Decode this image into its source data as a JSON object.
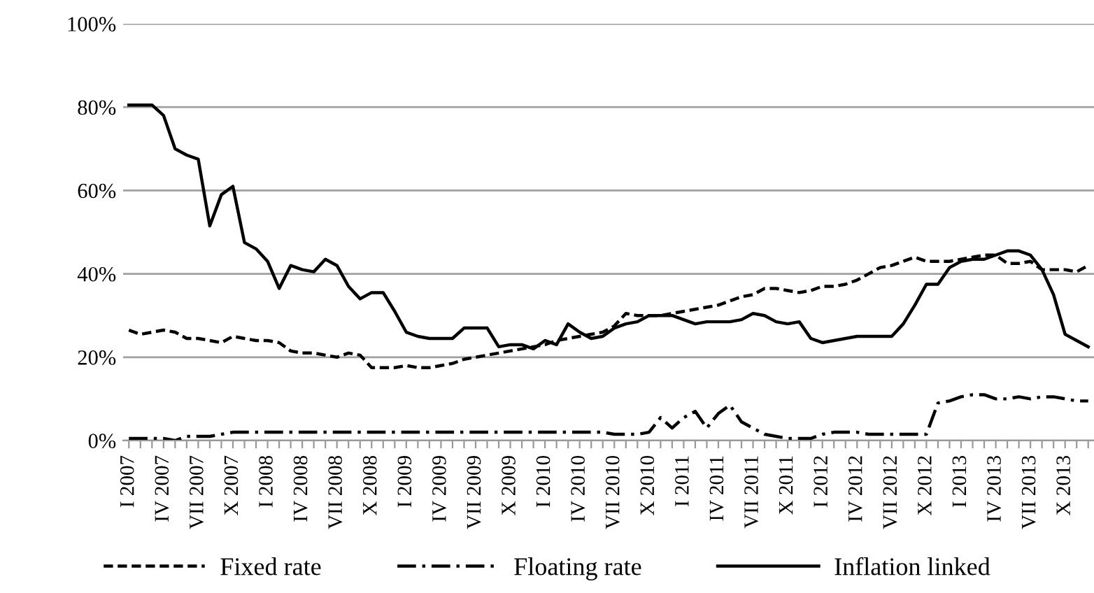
{
  "chart_data": {
    "type": "line",
    "categories": [
      "I 2007",
      null,
      null,
      "IV 2007",
      null,
      null,
      "VII 2007",
      null,
      null,
      "X 2007",
      null,
      null,
      "I 2008",
      null,
      null,
      "IV 2008",
      null,
      null,
      "VII 2008",
      null,
      null,
      "X 2008",
      null,
      null,
      "I 2009",
      null,
      null,
      "IV 2009",
      null,
      null,
      "VII 2009",
      null,
      null,
      "X 2009",
      null,
      null,
      "I 2010",
      null,
      null,
      "IV 2010",
      null,
      null,
      "VII 2010",
      null,
      null,
      "X 2010",
      null,
      null,
      "I 2011",
      null,
      null,
      "IV 2011",
      null,
      null,
      "VII 2011",
      null,
      null,
      "X 2011",
      null,
      null,
      "I 2012",
      null,
      null,
      "IV 2012",
      null,
      null,
      "VII 2012",
      null,
      null,
      "X 2012",
      null,
      null,
      "I 2013",
      null,
      null,
      "IV 2013",
      null,
      null,
      "VII 2013",
      null,
      null,
      "X 2013",
      null,
      null
    ],
    "series": [
      {
        "name": "Fixed rate",
        "color": "#000000",
        "line_style": "dashed",
        "values": [
          26.5,
          25.5,
          26,
          26.5,
          26,
          24.5,
          24.5,
          24,
          23.5,
          25,
          24.5,
          24,
          24,
          23.5,
          21.5,
          21,
          21,
          20.5,
          20,
          21,
          20.5,
          17.5,
          17.5,
          17.5,
          18,
          17.5,
          17.5,
          18,
          18.5,
          19.5,
          20,
          20.5,
          21,
          21.5,
          22,
          22.5,
          23,
          24,
          24.5,
          25,
          25.5,
          26,
          27.5,
          30.5,
          30,
          30,
          30,
          30.5,
          31,
          31.5,
          32,
          32.5,
          33.5,
          34.5,
          35,
          36.5,
          36.5,
          36,
          35.5,
          36,
          37,
          37,
          37.5,
          38.5,
          40,
          41.5,
          42,
          43,
          44,
          43,
          43,
          43,
          43.5,
          44,
          44.5,
          44.5,
          42.5,
          42.5,
          43,
          41,
          41,
          41,
          40.5,
          42
        ]
      },
      {
        "name": "Floating rate",
        "color": "#000000",
        "line_style": "dashdot",
        "values": [
          0.5,
          0.5,
          0.5,
          0.5,
          0,
          1,
          1,
          1,
          1.5,
          2,
          2,
          2,
          2,
          2,
          2,
          2,
          2,
          2,
          2,
          2,
          2,
          2,
          2,
          2,
          2,
          2,
          2,
          2,
          2,
          2,
          2,
          2,
          2,
          2,
          2,
          2,
          2,
          2,
          2,
          2,
          2,
          2,
          1.5,
          1.5,
          1.5,
          2,
          5.5,
          3,
          5.5,
          7,
          3,
          6.5,
          8.5,
          4.5,
          3,
          1.5,
          1,
          0.5,
          0.5,
          0.5,
          1.5,
          2,
          2,
          2,
          1.5,
          1.5,
          1.5,
          1.5,
          1.5,
          1.5,
          9,
          9.5,
          10.5,
          11,
          11,
          10,
          10,
          10.5,
          10,
          10.5,
          10.5,
          10,
          9.5,
          9.5
        ]
      },
      {
        "name": "Inflation linked",
        "color": "#000000",
        "line_style": "solid",
        "values": [
          80.5,
          80.5,
          80.5,
          78,
          70,
          68.5,
          67.5,
          51.5,
          59,
          61,
          47.5,
          46,
          43,
          36.5,
          42,
          41,
          40.5,
          43.5,
          42,
          37,
          34,
          35.5,
          35.5,
          31,
          26,
          25,
          24.5,
          24.5,
          24.5,
          27,
          27,
          27,
          22.5,
          23,
          23,
          22,
          24,
          23,
          28,
          26,
          24.5,
          25,
          27,
          28,
          28.5,
          30,
          30,
          30,
          29,
          28,
          28.5,
          28.5,
          28.5,
          29,
          30.5,
          30,
          28.5,
          28,
          28.5,
          24.5,
          23.5,
          24,
          24.5,
          25,
          25,
          25,
          25,
          28,
          32.5,
          37.5,
          37.5,
          41.5,
          43,
          43.5,
          43.5,
          44.5,
          45.5,
          45.5,
          44.5,
          41,
          35,
          25.5,
          24,
          22.5
        ]
      }
    ],
    "ylim": [
      0,
      100
    ],
    "yticks": [
      {
        "value": 0,
        "label": "0%"
      },
      {
        "value": 20,
        "label": "20%"
      },
      {
        "value": 40,
        "label": "40%"
      },
      {
        "value": 60,
        "label": "60%"
      },
      {
        "value": 80,
        "label": "80%"
      },
      {
        "value": 100,
        "label": "100%"
      }
    ],
    "grid": "y",
    "legend": "bottom",
    "marker": "none"
  }
}
